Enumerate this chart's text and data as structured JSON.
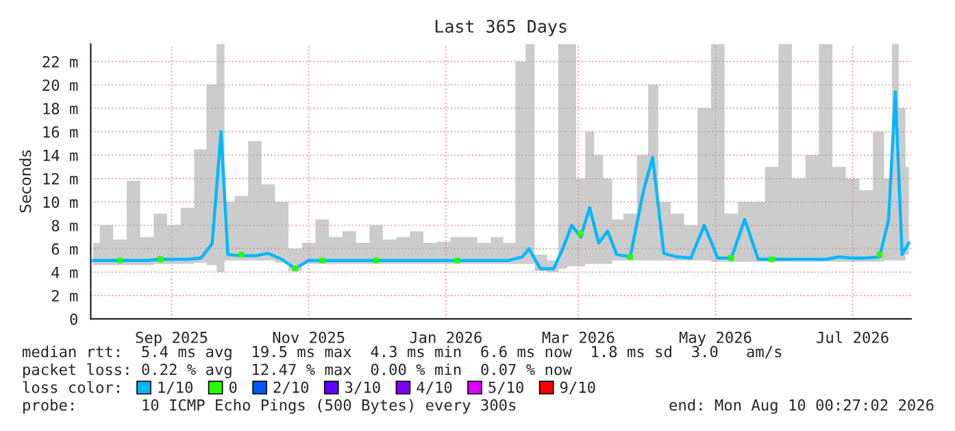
{
  "chart_data": {
    "type": "line",
    "title": "Last 365 Days",
    "ylabel": "Seconds",
    "x": [
      "2025-08-11",
      "2025-08-17",
      "2025-08-23",
      "2025-08-29",
      "2025-09-04",
      "2025-09-10",
      "2025-09-16",
      "2025-09-22",
      "2025-09-28",
      "2025-10-03",
      "2025-10-07",
      "2025-10-10",
      "2025-10-16",
      "2025-10-22",
      "2025-10-28",
      "2025-11-03",
      "2025-11-09",
      "2025-11-15",
      "2025-11-21",
      "2025-11-27",
      "2025-12-03",
      "2025-12-09",
      "2025-12-15",
      "2025-12-21",
      "2025-12-27",
      "2026-01-02",
      "2026-01-08",
      "2026-01-14",
      "2026-01-20",
      "2026-01-26",
      "2026-02-01",
      "2026-02-07",
      "2026-02-12",
      "2026-02-18",
      "2026-02-21",
      "2026-02-26",
      "2026-03-04",
      "2026-03-08",
      "2026-03-12",
      "2026-03-16",
      "2026-03-20",
      "2026-03-24",
      "2026-03-28",
      "2026-04-01",
      "2026-04-07",
      "2026-04-13",
      "2026-04-17",
      "2026-04-22",
      "2026-04-28",
      "2026-05-04",
      "2026-05-10",
      "2026-05-16",
      "2026-05-22",
      "2026-05-28",
      "2026-06-03",
      "2026-06-09",
      "2026-06-15",
      "2026-06-21",
      "2026-06-27",
      "2026-07-03",
      "2026-07-09",
      "2026-07-15",
      "2026-07-21",
      "2026-07-27",
      "2026-07-31",
      "2026-08-03",
      "2026-08-06",
      "2026-08-09"
    ],
    "series": [
      {
        "name": "1/10",
        "color": "#00b8ff",
        "values": [
          5.0,
          5.0,
          5.0,
          5.0,
          5.0,
          5.1,
          5.1,
          5.1,
          5.2,
          6.4,
          16.0,
          5.5,
          5.4,
          5.4,
          5.6,
          5.1,
          4.3,
          5.0,
          5.0,
          5.0,
          5.0,
          5.0,
          5.0,
          5.0,
          5.0,
          5.0,
          5.0,
          5.0,
          5.0,
          5.0,
          5.0,
          5.0,
          5.0,
          5.3,
          6.0,
          4.3,
          4.3,
          6.0,
          8.0,
          7.0,
          9.5,
          6.5,
          7.5,
          5.5,
          5.3,
          11.0,
          13.8,
          5.6,
          5.3,
          5.2,
          8.0,
          5.2,
          5.2,
          8.5,
          5.1,
          5.1,
          5.1,
          5.1,
          5.1,
          5.1,
          5.3,
          5.2,
          5.2,
          5.3,
          8.5,
          19.4,
          5.5,
          6.5
        ],
        "lower": [
          4.6,
          4.6,
          4.6,
          4.6,
          4.6,
          4.7,
          4.7,
          4.7,
          4.8,
          4.6,
          4.0,
          5.0,
          5.0,
          5.0,
          5.0,
          4.8,
          4.1,
          4.7,
          4.7,
          4.7,
          4.7,
          4.7,
          4.7,
          4.7,
          4.7,
          4.7,
          4.7,
          4.7,
          4.7,
          4.7,
          4.7,
          4.7,
          4.7,
          4.7,
          4.7,
          4.1,
          4.0,
          4.3,
          4.5,
          4.5,
          4.7,
          4.7,
          4.7,
          5.0,
          5.0,
          5.0,
          5.0,
          5.0,
          5.0,
          5.0,
          5.0,
          4.9,
          4.9,
          4.9,
          4.9,
          4.9,
          4.9,
          4.9,
          4.9,
          4.9,
          4.9,
          4.9,
          4.9,
          4.9,
          5.0,
          5.0,
          5.0,
          5.5
        ],
        "upper": [
          6.5,
          8.0,
          6.8,
          11.8,
          7.0,
          9.0,
          8.0,
          9.5,
          14.5,
          20.0,
          23.5,
          10.0,
          10.5,
          15.2,
          11.5,
          10.0,
          6.0,
          6.5,
          8.5,
          7.0,
          7.5,
          6.5,
          8.0,
          6.8,
          7.0,
          7.5,
          6.5,
          6.6,
          7.0,
          7.0,
          6.5,
          7.0,
          6.5,
          22.0,
          23.5,
          5.5,
          5.0,
          23.5,
          23.5,
          12.0,
          16.0,
          14.0,
          12.0,
          8.5,
          9.0,
          14.0,
          20.0,
          10.0,
          9.0,
          8.0,
          18.0,
          23.5,
          9.0,
          10.0,
          10.0,
          13.0,
          23.5,
          12.0,
          14.0,
          23.5,
          13.0,
          12.0,
          11.0,
          16.0,
          12.0,
          23.5,
          18.0,
          13.0
        ]
      },
      {
        "name": "0",
        "color": "#26ff00",
        "type": "scatter",
        "x": [
          "2025-08-23",
          "2025-09-10",
          "2025-10-16",
          "2025-11-09",
          "2025-11-21",
          "2025-12-15",
          "2026-01-20",
          "2026-03-16",
          "2026-04-07",
          "2026-05-22",
          "2026-06-09",
          "2026-07-27"
        ],
        "values": [
          5.0,
          5.1,
          5.5,
          4.3,
          5.0,
          5.0,
          5.0,
          7.3,
          5.3,
          5.2,
          5.1,
          5.5
        ]
      },
      {
        "name": "2/10",
        "color": "#0059ff",
        "type": "scatter",
        "values": [
          null,
          null,
          null,
          null,
          null,
          null,
          null,
          null,
          null,
          null,
          null,
          null,
          null,
          null,
          null,
          null,
          null,
          null,
          null,
          null,
          null,
          null,
          null,
          null,
          null,
          null,
          null,
          null,
          null,
          null,
          null,
          null,
          null,
          null,
          null,
          null,
          null,
          null,
          null,
          null,
          null,
          null,
          null,
          null,
          null,
          null,
          null,
          null,
          null,
          null,
          null,
          null,
          null,
          null,
          null,
          null,
          null,
          null,
          null,
          null,
          null,
          null,
          null,
          null,
          null,
          null,
          null,
          null
        ]
      },
      {
        "name": "3/10",
        "color": "#5e00ff",
        "type": "scatter",
        "values": [
          null,
          null,
          null,
          null,
          null,
          null,
          null,
          null,
          null,
          null,
          null,
          null,
          null,
          null,
          null,
          null,
          null,
          null,
          null,
          null,
          null,
          null,
          null,
          null,
          null,
          null,
          null,
          null,
          null,
          null,
          null,
          null,
          null,
          null,
          null,
          null,
          null,
          null,
          null,
          null,
          null,
          null,
          null,
          null,
          null,
          null,
          null,
          null,
          null,
          null,
          null,
          null,
          null,
          null,
          null,
          null,
          null,
          null,
          null,
          null,
          null,
          null,
          null,
          null,
          null,
          null,
          null,
          null
        ]
      },
      {
        "name": "4/10",
        "color": "#7e00ff",
        "type": "scatter",
        "values": [
          null,
          null,
          null,
          null,
          null,
          null,
          null,
          null,
          null,
          null,
          null,
          null,
          null,
          null,
          null,
          null,
          null,
          null,
          null,
          null,
          null,
          null,
          null,
          null,
          null,
          null,
          null,
          null,
          null,
          null,
          null,
          null,
          null,
          null,
          null,
          null,
          null,
          null,
          null,
          null,
          null,
          null,
          null,
          null,
          null,
          null,
          null,
          null,
          null,
          null,
          null,
          null,
          null,
          null,
          null,
          null,
          null,
          null,
          null,
          null,
          null,
          null,
          null,
          null,
          null,
          null,
          null,
          null
        ]
      },
      {
        "name": "5/10",
        "color": "#dd00ff",
        "type": "scatter",
        "values": [
          null,
          null,
          null,
          null,
          null,
          null,
          null,
          null,
          null,
          null,
          null,
          null,
          null,
          null,
          null,
          null,
          null,
          null,
          null,
          null,
          null,
          null,
          null,
          null,
          null,
          null,
          null,
          null,
          null,
          null,
          null,
          null,
          null,
          null,
          null,
          null,
          null,
          null,
          null,
          null,
          null,
          null,
          null,
          null,
          null,
          null,
          null,
          null,
          null,
          null,
          null,
          null,
          null,
          null,
          null,
          null,
          null,
          null,
          null,
          null,
          null,
          null,
          null,
          null,
          null,
          null,
          null,
          null
        ]
      },
      {
        "name": "9/10",
        "color": "#ff0000",
        "type": "scatter",
        "values": [
          null,
          null,
          null,
          null,
          null,
          null,
          null,
          null,
          null,
          null,
          null,
          null,
          null,
          null,
          null,
          null,
          null,
          null,
          null,
          null,
          null,
          null,
          null,
          null,
          null,
          null,
          null,
          null,
          null,
          null,
          null,
          null,
          null,
          null,
          null,
          null,
          null,
          null,
          null,
          null,
          null,
          null,
          null,
          null,
          null,
          null,
          null,
          null,
          null,
          null,
          null,
          null,
          null,
          null,
          null,
          null,
          null,
          null,
          null,
          null,
          null,
          null,
          null,
          null,
          null,
          null,
          null,
          null
        ]
      }
    ],
    "xlim": [
      "2025-08-10",
      "2026-08-10"
    ],
    "xticks": [
      {
        "value": "2025-09-15",
        "label": "Sep 2025"
      },
      {
        "value": "2025-11-15",
        "label": "Nov 2025"
      },
      {
        "value": "2026-01-15",
        "label": "Jan 2026"
      },
      {
        "value": "2026-03-15",
        "label": "Mar 2026"
      },
      {
        "value": "2026-05-15",
        "label": "May 2026"
      },
      {
        "value": "2026-07-15",
        "label": "Jul 2026"
      }
    ],
    "ylim": [
      0,
      23.5
    ],
    "yticks": [
      0,
      {
        "value": 2,
        "label": "2 m"
      },
      {
        "value": 4,
        "label": "4 m"
      },
      {
        "value": 6,
        "label": "6 m"
      },
      {
        "value": 8,
        "label": "8 m"
      },
      {
        "value": 10,
        "label": "10 m"
      },
      {
        "value": 12,
        "label": "12 m"
      },
      {
        "value": 14,
        "label": "14 m"
      },
      {
        "value": 16,
        "label": "16 m"
      },
      {
        "value": 18,
        "label": "18 m"
      },
      {
        "value": 20,
        "label": "20 m"
      },
      {
        "value": 22,
        "label": "22 m"
      }
    ],
    "grid": true,
    "legend": "bottom",
    "legend_title": "loss color:",
    "annotations": [
      "median rtt:  5.4 ms avg  19.5 ms max  4.3 ms min  6.6 ms now  1.8 ms sd  3.0   am/s",
      "packet loss: 0.22 % avg  12.47 % max  0.00 % min  0.07 % now",
      "probe:       10 ICMP Echo Pings (500 Bytes) every 300s",
      "end: Mon Aug 10 00:27:02 2026"
    ]
  }
}
